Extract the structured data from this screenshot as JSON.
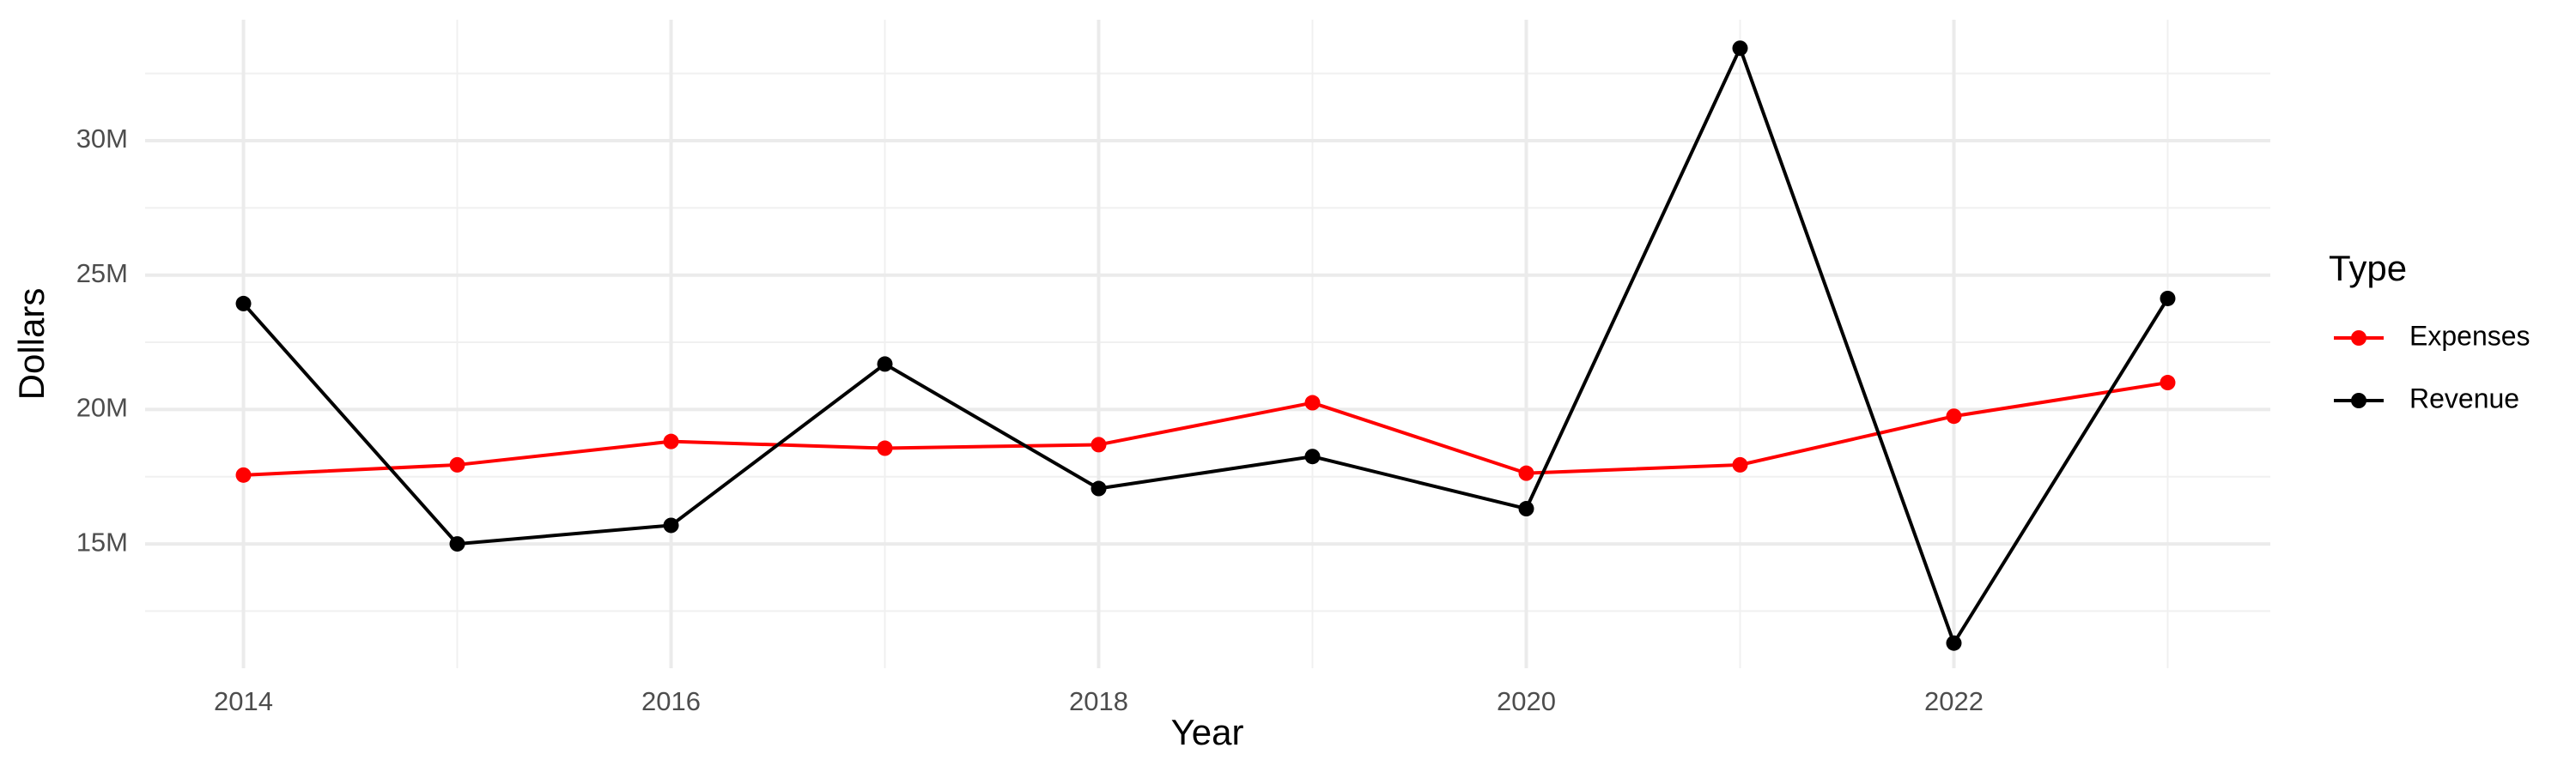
{
  "chart_data": {
    "type": "line",
    "x_label": "Year",
    "y_label": "Dollars",
    "legend_title": "Type",
    "x": [
      2014,
      2015,
      2016,
      2017,
      2018,
      2019,
      2020,
      2021,
      2022,
      2023
    ],
    "series": [
      {
        "name": "Expenses",
        "color": "#ff0000",
        "values": [
          17560000,
          17940000,
          18810000,
          18560000,
          18690000,
          20250000,
          17630000,
          17940000,
          19750000,
          21000000
        ]
      },
      {
        "name": "Revenue",
        "color": "#000000",
        "values": [
          23940000,
          15000000,
          15690000,
          21690000,
          17060000,
          18250000,
          16310000,
          33440000,
          11310000,
          24130000
        ]
      }
    ],
    "xlim": [
      2013.54,
      2023.48
    ],
    "xticks": [
      2014,
      2016,
      2018,
      2020,
      2022
    ],
    "ylim": [
      10375000,
      34500000
    ],
    "yticks": [
      {
        "value": 15000000,
        "label": "15M"
      },
      {
        "value": 20000000,
        "label": "20M"
      },
      {
        "value": 25000000,
        "label": "25M"
      },
      {
        "value": 30000000,
        "label": "30M"
      }
    ],
    "grid": true,
    "legend_position": "right"
  }
}
